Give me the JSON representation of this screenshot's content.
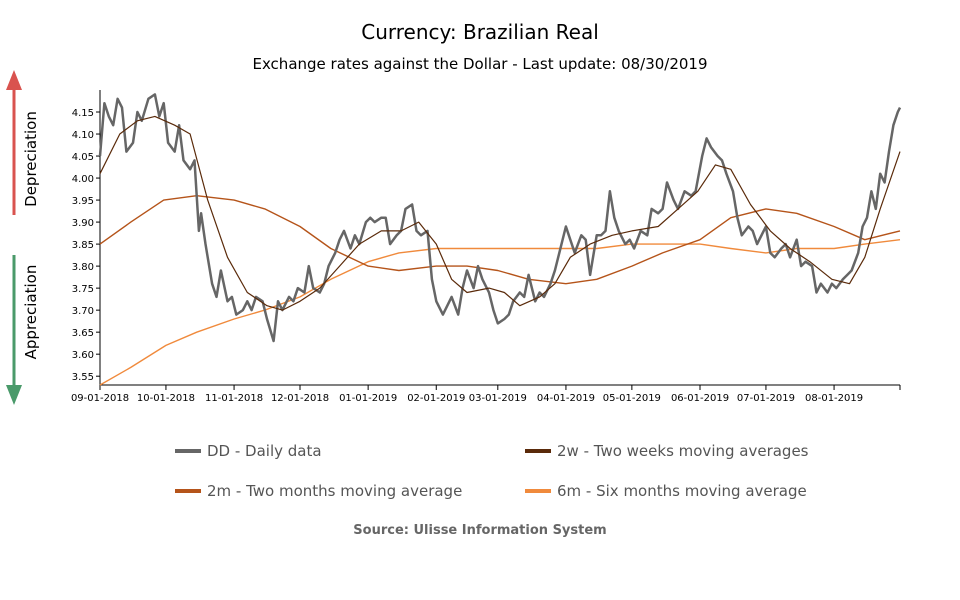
{
  "title": "Currency: Brazilian Real",
  "subtitle": "Exchange rates against the Dollar - Last update: 08/30/2019",
  "side_labels": {
    "up": "Depreciation",
    "down": "Appreciation"
  },
  "source": "Source: Ulisse Information System",
  "colors": {
    "daily": "#666666",
    "two_weeks": "#5a2a0a",
    "two_months": "#b5541a",
    "six_months": "#f08a3c",
    "depreciation": "#d9534f",
    "appreciation": "#4a9a6a"
  },
  "chart_data": {
    "type": "line",
    "title": "Currency: Brazilian Real",
    "subtitle": "Exchange rates against the Dollar - Last update: 08/30/2019",
    "ylim": [
      3.53,
      4.2
    ],
    "xlim": [
      "2018-09-01",
      "2019-08-31"
    ],
    "x_ticks": [
      "09-01-2018",
      "10-01-2018",
      "11-01-2018",
      "12-01-2018",
      "01-01-2019",
      "02-01-2019",
      "03-01-2019",
      "04-01-2019",
      "05-01-2019",
      "06-01-2019",
      "07-01-2019",
      "08-01-2019"
    ],
    "y_ticks": [
      3.55,
      3.6,
      3.65,
      3.7,
      3.75,
      3.8,
      3.85,
      3.9,
      3.95,
      4.0,
      4.05,
      4.1,
      4.15
    ],
    "legend": "bottom",
    "series": [
      {
        "name": "DD - Daily data",
        "key": "daily",
        "points": [
          [
            "2018-09-01",
            4.05
          ],
          [
            "2018-09-03",
            4.17
          ],
          [
            "2018-09-05",
            4.14
          ],
          [
            "2018-09-07",
            4.12
          ],
          [
            "2018-09-09",
            4.18
          ],
          [
            "2018-09-11",
            4.16
          ],
          [
            "2018-09-13",
            4.06
          ],
          [
            "2018-09-16",
            4.08
          ],
          [
            "2018-09-18",
            4.15
          ],
          [
            "2018-09-20",
            4.13
          ],
          [
            "2018-09-23",
            4.18
          ],
          [
            "2018-09-26",
            4.19
          ],
          [
            "2018-09-28",
            4.14
          ],
          [
            "2018-09-30",
            4.17
          ],
          [
            "2018-10-02",
            4.08
          ],
          [
            "2018-10-05",
            4.06
          ],
          [
            "2018-10-07",
            4.12
          ],
          [
            "2018-10-09",
            4.04
          ],
          [
            "2018-10-12",
            4.02
          ],
          [
            "2018-10-14",
            4.04
          ],
          [
            "2018-10-16",
            3.88
          ],
          [
            "2018-10-17",
            3.92
          ],
          [
            "2018-10-19",
            3.85
          ],
          [
            "2018-10-22",
            3.76
          ],
          [
            "2018-10-24",
            3.73
          ],
          [
            "2018-10-26",
            3.79
          ],
          [
            "2018-10-29",
            3.72
          ],
          [
            "2018-10-31",
            3.73
          ],
          [
            "2018-11-02",
            3.69
          ],
          [
            "2018-11-05",
            3.7
          ],
          [
            "2018-11-07",
            3.72
          ],
          [
            "2018-11-09",
            3.7
          ],
          [
            "2018-11-11",
            3.73
          ],
          [
            "2018-11-14",
            3.72
          ],
          [
            "2018-11-16",
            3.68
          ],
          [
            "2018-11-19",
            3.63
          ],
          [
            "2018-11-21",
            3.72
          ],
          [
            "2018-11-23",
            3.7
          ],
          [
            "2018-11-26",
            3.73
          ],
          [
            "2018-11-28",
            3.72
          ],
          [
            "2018-11-30",
            3.75
          ],
          [
            "2018-12-03",
            3.74
          ],
          [
            "2018-12-05",
            3.8
          ],
          [
            "2018-12-07",
            3.75
          ],
          [
            "2018-12-10",
            3.74
          ],
          [
            "2018-12-12",
            3.76
          ],
          [
            "2018-12-14",
            3.8
          ],
          [
            "2018-12-17",
            3.83
          ],
          [
            "2018-12-19",
            3.86
          ],
          [
            "2018-12-21",
            3.88
          ],
          [
            "2018-12-24",
            3.84
          ],
          [
            "2018-12-26",
            3.87
          ],
          [
            "2018-12-28",
            3.85
          ],
          [
            "2018-12-31",
            3.9
          ],
          [
            "2019-01-02",
            3.91
          ],
          [
            "2019-01-04",
            3.9
          ],
          [
            "2019-01-07",
            3.91
          ],
          [
            "2019-01-09",
            3.91
          ],
          [
            "2019-01-11",
            3.85
          ],
          [
            "2019-01-14",
            3.87
          ],
          [
            "2019-01-16",
            3.88
          ],
          [
            "2019-01-18",
            3.93
          ],
          [
            "2019-01-21",
            3.94
          ],
          [
            "2019-01-23",
            3.88
          ],
          [
            "2019-01-25",
            3.87
          ],
          [
            "2019-01-28",
            3.88
          ],
          [
            "2019-01-30",
            3.77
          ],
          [
            "2019-02-01",
            3.72
          ],
          [
            "2019-02-04",
            3.69
          ],
          [
            "2019-02-06",
            3.71
          ],
          [
            "2019-02-08",
            3.73
          ],
          [
            "2019-02-11",
            3.69
          ],
          [
            "2019-02-13",
            3.75
          ],
          [
            "2019-02-15",
            3.79
          ],
          [
            "2019-02-18",
            3.75
          ],
          [
            "2019-02-20",
            3.8
          ],
          [
            "2019-02-22",
            3.77
          ],
          [
            "2019-02-25",
            3.74
          ],
          [
            "2019-02-27",
            3.7
          ],
          [
            "2019-03-01",
            3.67
          ],
          [
            "2019-03-04",
            3.68
          ],
          [
            "2019-03-06",
            3.69
          ],
          [
            "2019-03-08",
            3.72
          ],
          [
            "2019-03-11",
            3.74
          ],
          [
            "2019-03-13",
            3.73
          ],
          [
            "2019-03-15",
            3.78
          ],
          [
            "2019-03-18",
            3.72
          ],
          [
            "2019-03-20",
            3.74
          ],
          [
            "2019-03-22",
            3.73
          ],
          [
            "2019-03-25",
            3.76
          ],
          [
            "2019-03-27",
            3.79
          ],
          [
            "2019-03-29",
            3.83
          ],
          [
            "2019-04-01",
            3.89
          ],
          [
            "2019-04-03",
            3.86
          ],
          [
            "2019-04-05",
            3.83
          ],
          [
            "2019-04-08",
            3.87
          ],
          [
            "2019-04-10",
            3.86
          ],
          [
            "2019-04-12",
            3.78
          ],
          [
            "2019-04-15",
            3.87
          ],
          [
            "2019-04-17",
            3.87
          ],
          [
            "2019-04-19",
            3.88
          ],
          [
            "2019-04-21",
            3.97
          ],
          [
            "2019-04-23",
            3.91
          ],
          [
            "2019-04-25",
            3.88
          ],
          [
            "2019-04-28",
            3.85
          ],
          [
            "2019-04-30",
            3.86
          ],
          [
            "2019-05-02",
            3.84
          ],
          [
            "2019-05-05",
            3.88
          ],
          [
            "2019-05-08",
            3.87
          ],
          [
            "2019-05-10",
            3.93
          ],
          [
            "2019-05-13",
            3.92
          ],
          [
            "2019-05-15",
            3.93
          ],
          [
            "2019-05-17",
            3.99
          ],
          [
            "2019-05-20",
            3.95
          ],
          [
            "2019-05-22",
            3.93
          ],
          [
            "2019-05-25",
            3.97
          ],
          [
            "2019-05-28",
            3.96
          ],
          [
            "2019-05-30",
            3.97
          ],
          [
            "2019-06-02",
            4.05
          ],
          [
            "2019-06-04",
            4.09
          ],
          [
            "2019-06-06",
            4.07
          ],
          [
            "2019-06-09",
            4.05
          ],
          [
            "2019-06-11",
            4.04
          ],
          [
            "2019-06-13",
            4.01
          ],
          [
            "2019-06-16",
            3.97
          ],
          [
            "2019-06-18",
            3.91
          ],
          [
            "2019-06-20",
            3.87
          ],
          [
            "2019-06-23",
            3.89
          ],
          [
            "2019-06-25",
            3.88
          ],
          [
            "2019-06-27",
            3.85
          ],
          [
            "2019-07-01",
            3.89
          ],
          [
            "2019-07-03",
            3.83
          ],
          [
            "2019-07-05",
            3.82
          ],
          [
            "2019-07-08",
            3.84
          ],
          [
            "2019-07-10",
            3.85
          ],
          [
            "2019-07-12",
            3.82
          ],
          [
            "2019-07-15",
            3.86
          ],
          [
            "2019-07-17",
            3.8
          ],
          [
            "2019-07-19",
            3.81
          ],
          [
            "2019-07-22",
            3.8
          ],
          [
            "2019-07-24",
            3.74
          ],
          [
            "2019-07-26",
            3.76
          ],
          [
            "2019-07-29",
            3.74
          ],
          [
            "2019-07-31",
            3.76
          ],
          [
            "2019-08-02",
            3.75
          ],
          [
            "2019-08-05",
            3.77
          ],
          [
            "2019-08-07",
            3.78
          ],
          [
            "2019-08-09",
            3.79
          ],
          [
            "2019-08-12",
            3.83
          ],
          [
            "2019-08-14",
            3.89
          ],
          [
            "2019-08-16",
            3.91
          ],
          [
            "2019-08-18",
            3.97
          ],
          [
            "2019-08-20",
            3.93
          ],
          [
            "2019-08-22",
            4.01
          ],
          [
            "2019-08-24",
            3.99
          ],
          [
            "2019-08-26",
            4.06
          ],
          [
            "2019-08-28",
            4.12
          ],
          [
            "2019-08-30",
            4.15
          ],
          [
            "2019-08-31",
            4.16
          ]
        ]
      },
      {
        "name": "2w - Two weeks moving averages",
        "key": "two_weeks",
        "points": [
          [
            "2018-09-01",
            4.01
          ],
          [
            "2018-09-10",
            4.1
          ],
          [
            "2018-09-18",
            4.13
          ],
          [
            "2018-09-26",
            4.14
          ],
          [
            "2018-10-05",
            4.12
          ],
          [
            "2018-10-12",
            4.1
          ],
          [
            "2018-10-20",
            3.95
          ],
          [
            "2018-10-29",
            3.82
          ],
          [
            "2018-11-07",
            3.74
          ],
          [
            "2018-11-16",
            3.71
          ],
          [
            "2018-11-23",
            3.7
          ],
          [
            "2018-12-01",
            3.72
          ],
          [
            "2018-12-10",
            3.75
          ],
          [
            "2018-12-19",
            3.8
          ],
          [
            "2018-12-28",
            3.85
          ],
          [
            "2019-01-07",
            3.88
          ],
          [
            "2019-01-16",
            3.88
          ],
          [
            "2019-01-24",
            3.9
          ],
          [
            "2019-02-01",
            3.85
          ],
          [
            "2019-02-08",
            3.77
          ],
          [
            "2019-02-15",
            3.74
          ],
          [
            "2019-02-25",
            3.75
          ],
          [
            "2019-03-04",
            3.74
          ],
          [
            "2019-03-11",
            3.71
          ],
          [
            "2019-03-20",
            3.73
          ],
          [
            "2019-03-27",
            3.76
          ],
          [
            "2019-04-03",
            3.82
          ],
          [
            "2019-04-12",
            3.85
          ],
          [
            "2019-04-22",
            3.87
          ],
          [
            "2019-05-01",
            3.88
          ],
          [
            "2019-05-13",
            3.89
          ],
          [
            "2019-05-22",
            3.93
          ],
          [
            "2019-05-31",
            3.97
          ],
          [
            "2019-06-08",
            4.03
          ],
          [
            "2019-06-15",
            4.02
          ],
          [
            "2019-06-24",
            3.94
          ],
          [
            "2019-07-03",
            3.88
          ],
          [
            "2019-07-12",
            3.84
          ],
          [
            "2019-07-21",
            3.81
          ],
          [
            "2019-07-31",
            3.77
          ],
          [
            "2019-08-08",
            3.76
          ],
          [
            "2019-08-15",
            3.82
          ],
          [
            "2019-08-22",
            3.93
          ],
          [
            "2019-08-31",
            4.06
          ]
        ]
      },
      {
        "name": "2m - Two months moving average",
        "key": "two_months",
        "points": [
          [
            "2018-09-01",
            3.85
          ],
          [
            "2018-09-15",
            3.9
          ],
          [
            "2018-09-30",
            3.95
          ],
          [
            "2018-10-15",
            3.96
          ],
          [
            "2018-11-01",
            3.95
          ],
          [
            "2018-11-15",
            3.93
          ],
          [
            "2018-12-01",
            3.89
          ],
          [
            "2018-12-15",
            3.84
          ],
          [
            "2019-01-01",
            3.8
          ],
          [
            "2019-01-15",
            3.79
          ],
          [
            "2019-02-01",
            3.8
          ],
          [
            "2019-02-15",
            3.8
          ],
          [
            "2019-03-01",
            3.79
          ],
          [
            "2019-03-15",
            3.77
          ],
          [
            "2019-04-01",
            3.76
          ],
          [
            "2019-04-15",
            3.77
          ],
          [
            "2019-05-01",
            3.8
          ],
          [
            "2019-05-15",
            3.83
          ],
          [
            "2019-06-01",
            3.86
          ],
          [
            "2019-06-15",
            3.91
          ],
          [
            "2019-07-01",
            3.93
          ],
          [
            "2019-07-15",
            3.92
          ],
          [
            "2019-08-01",
            3.89
          ],
          [
            "2019-08-15",
            3.86
          ],
          [
            "2019-08-31",
            3.88
          ]
        ]
      },
      {
        "name": "6m - Six months moving average",
        "key": "six_months",
        "points": [
          [
            "2018-09-01",
            3.53
          ],
          [
            "2018-09-15",
            3.57
          ],
          [
            "2018-10-01",
            3.62
          ],
          [
            "2018-10-15",
            3.65
          ],
          [
            "2018-11-01",
            3.68
          ],
          [
            "2018-11-15",
            3.7
          ],
          [
            "2018-12-01",
            3.73
          ],
          [
            "2018-12-15",
            3.77
          ],
          [
            "2019-01-01",
            3.81
          ],
          [
            "2019-01-15",
            3.83
          ],
          [
            "2019-02-01",
            3.84
          ],
          [
            "2019-02-15",
            3.84
          ],
          [
            "2019-03-01",
            3.84
          ],
          [
            "2019-03-15",
            3.84
          ],
          [
            "2019-04-01",
            3.84
          ],
          [
            "2019-04-15",
            3.84
          ],
          [
            "2019-05-01",
            3.85
          ],
          [
            "2019-05-15",
            3.85
          ],
          [
            "2019-06-01",
            3.85
          ],
          [
            "2019-06-15",
            3.84
          ],
          [
            "2019-07-01",
            3.83
          ],
          [
            "2019-07-15",
            3.84
          ],
          [
            "2019-08-01",
            3.84
          ],
          [
            "2019-08-15",
            3.85
          ],
          [
            "2019-08-31",
            3.86
          ]
        ]
      }
    ]
  }
}
